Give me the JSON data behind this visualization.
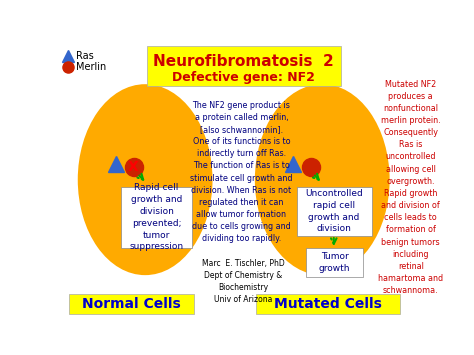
{
  "title": "Neurofibromatosis  2",
  "subtitle": "Defective gene: NF2",
  "title_color": "#cc0000",
  "subtitle_color": "#cc0000",
  "title_bg": "#ffff00",
  "background_color": "#ffffff",
  "cell_color": "#ffaa00",
  "legend_ras_color": "#3366cc",
  "legend_merlin_color": "#cc2200",
  "normal_label": "Normal Cells",
  "mutated_label": "Mutated Cells",
  "label_bg": "#ffff00",
  "label_text_color": "#0000cc",
  "center_text": "The NF2 gene product is\na protein called merlin,\n[also schwannomin].\nOne of its functions is to\nindirectly turn off Ras.\nThe function of Ras is to\nstimulate cell growth and\ndivision. When Ras is not\nregulated then it can\nallow tumor formation\ndue to cells growing and\ndividing too rapidly.",
  "right_text": "Mutated NF2\nproduces a\nnonfunctional\nmerlin protein.\nConsequently\nRas is\nuncontrolled\nallowing cell\novergrowth.\nRapid growth\nand division of\ncells leads to\nformation of\nbenign tumors\nincluding\nretinal\nhamartoma and\nschwannoma.",
  "normal_box_text": "Rapid cell\ngrowth and\ndivision\nprevented;\ntumor\nsuppression",
  "mutated_box1_text": "Uncontrolled\nrapid cell\ngrowth and\ndivision",
  "mutated_box2_text": "Tumor\ngrowth",
  "credit_text": "Marc  E. Tischler, PhD\nDept of Chemistry &\nBiochemistry\nUniv of Arizona",
  "box_bg": "#ffffff",
  "box_text_color": "#000080",
  "center_text_color": "#000080",
  "right_text_color": "#cc0000",
  "arrow_color": "#00aa00"
}
